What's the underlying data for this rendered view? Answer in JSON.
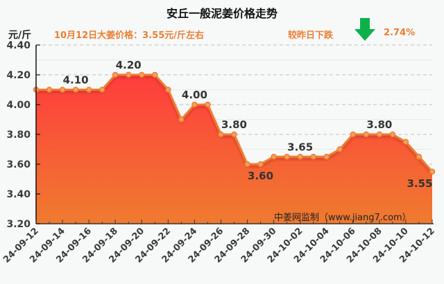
{
  "header": {
    "title": "安丘一般泥姜价格走势",
    "unit": "元/斤",
    "today_price_text": "10月12日大姜价格：3.55元/斤左右",
    "change_label": "较昨日下跌",
    "change_value": "2.74%",
    "change_direction_icon": "down-arrow-icon",
    "arrow_color": "#0db04b"
  },
  "watermark": "中姜网监制（www.jiang7.com）",
  "colors": {
    "line": "#ee7d31",
    "area_top": "#ff3d3d",
    "area_bottom": "#ef7b2f",
    "accent_text": "#ee7d31"
  },
  "chart_data": {
    "type": "area",
    "title": "安丘一般泥姜价格走势",
    "ylabel": "元/斤",
    "xlabel": "",
    "ylim": [
      3.2,
      4.4
    ],
    "yticks": [
      "4.40",
      "4.20",
      "4.00",
      "3.80",
      "3.60",
      "3.40",
      "3.20"
    ],
    "grid": "dashed major (0.2), faint minor (0.1)",
    "x": [
      "24-09-12",
      "24-09-13",
      "24-09-14",
      "24-09-15",
      "24-09-16",
      "24-09-17",
      "24-09-18",
      "24-09-19",
      "24-09-20",
      "24-09-21",
      "24-09-22",
      "24-09-23",
      "24-09-24",
      "24-09-25",
      "24-09-26",
      "24-09-27",
      "24-09-28",
      "24-09-29",
      "24-09-30",
      "24-10-01",
      "24-10-02",
      "24-10-03",
      "24-10-04",
      "24-10-05",
      "24-10-06",
      "24-10-07",
      "24-10-08",
      "24-10-09",
      "24-10-10",
      "24-10-11",
      "24-10-12"
    ],
    "xtick_labels": [
      "24-09-12",
      "24-09-14",
      "24-09-16",
      "24-09-18",
      "24-09-20",
      "24-09-22",
      "24-09-24",
      "24-09-26",
      "24-09-28",
      "24-09-30",
      "24-10-02",
      "24-10-04",
      "24-10-06",
      "24-10-08",
      "24-10-10",
      "24-10-12"
    ],
    "series": [
      {
        "name": "安丘一般泥姜价格",
        "values": [
          4.1,
          4.1,
          4.1,
          4.1,
          4.1,
          4.1,
          4.2,
          4.2,
          4.2,
          4.2,
          4.1,
          3.9,
          4.0,
          4.0,
          3.8,
          3.8,
          3.6,
          3.6,
          3.65,
          3.65,
          3.65,
          3.65,
          3.65,
          3.7,
          3.8,
          3.8,
          3.8,
          3.8,
          3.75,
          3.65,
          3.55
        ]
      }
    ],
    "annotations": [
      {
        "index": 3,
        "text": "4.10",
        "pos": "above"
      },
      {
        "index": 7,
        "text": "4.20",
        "pos": "above"
      },
      {
        "index": 12,
        "text": "4.00",
        "pos": "above"
      },
      {
        "index": 15,
        "text": "3.80",
        "pos": "above"
      },
      {
        "index": 17,
        "text": "3.60",
        "pos": "below"
      },
      {
        "index": 20,
        "text": "3.65",
        "pos": "above"
      },
      {
        "index": 26,
        "text": "3.80",
        "pos": "above"
      },
      {
        "index": 30,
        "text": "3.55",
        "pos": "below"
      }
    ]
  }
}
